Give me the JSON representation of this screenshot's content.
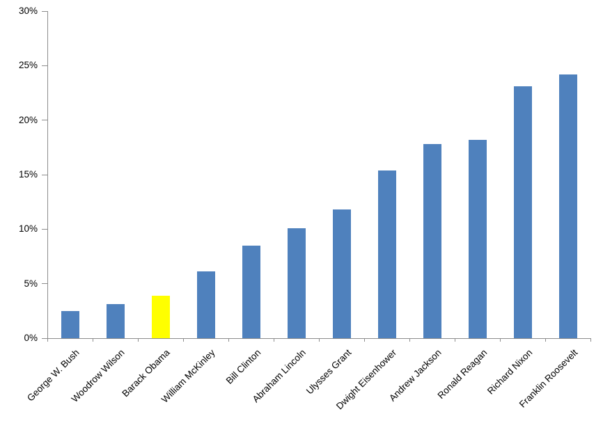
{
  "chart_data": {
    "type": "bar",
    "title": "",
    "xlabel": "",
    "ylabel": "",
    "categories": [
      "George W. Bush",
      "Woodrow Wilson",
      "Barack Obama",
      "William McKinley",
      "Bill Clinton",
      "Abraham Lincoln",
      "Ulysses Grant",
      "Dwight Eisenhower",
      "Andrew Jackson",
      "Ronald Reagan",
      "Richard Nixon",
      "Franklin Roosevelt"
    ],
    "values": [
      2.5,
      3.1,
      3.9,
      6.1,
      8.5,
      10.1,
      11.8,
      15.4,
      17.8,
      18.2,
      23.1,
      24.2
    ],
    "highlight_index": 2,
    "highlight_category": "Barack Obama",
    "ylim": [
      0,
      30
    ],
    "ytick_step": 5,
    "ytick_labels": [
      "0%",
      "5%",
      "10%",
      "15%",
      "20%",
      "25%",
      "30%"
    ],
    "grid": false,
    "legend": false,
    "colors": {
      "bar": "#4F81BD",
      "highlight": "#FFFF00",
      "axis": "#8c8c8c",
      "text": "#000000",
      "background": "#FFFFFF"
    }
  }
}
